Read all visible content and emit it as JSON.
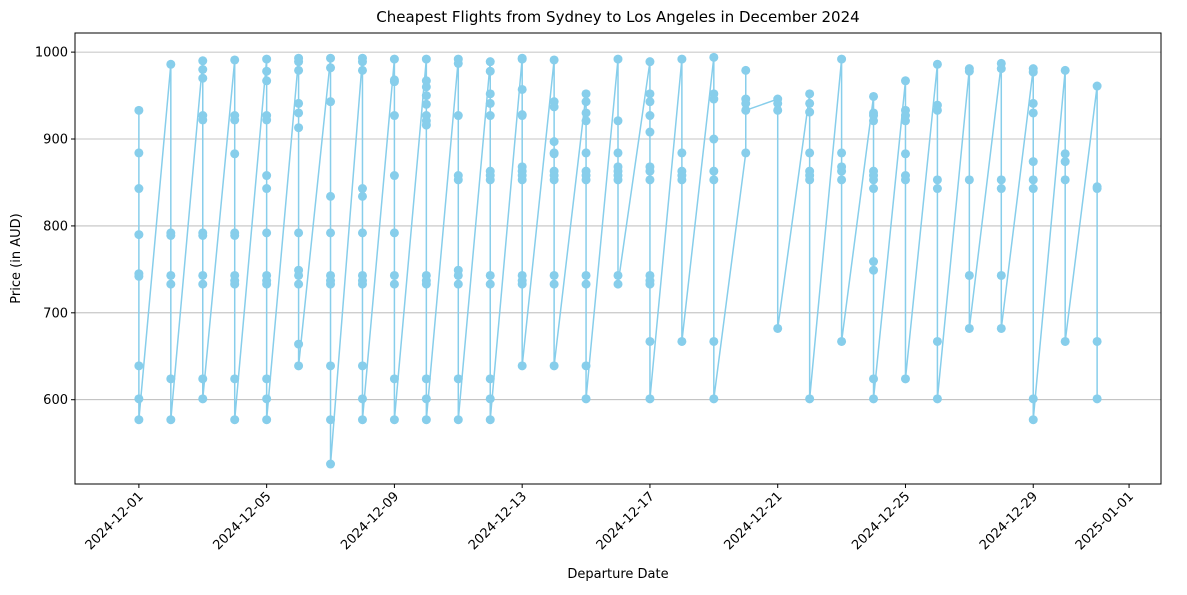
{
  "chart_data": {
    "type": "line",
    "title": "Cheapest Flights from Sydney to Los Angeles in December 2024",
    "xlabel": "Departure Date",
    "ylabel": "Price (in AUD)",
    "xlim": [
      "2024-11-29",
      "2025-01-02"
    ],
    "ylim": [
      503,
      1022
    ],
    "x_ticks": [
      "2024-12-01",
      "2024-12-05",
      "2024-12-09",
      "2024-12-13",
      "2024-12-17",
      "2024-12-21",
      "2024-12-25",
      "2024-12-29",
      "2025-01-01"
    ],
    "y_ticks": [
      600,
      700,
      800,
      900,
      1000
    ],
    "grid": "y-major",
    "color": "#87ceeb",
    "marker": "circle",
    "series": [
      {
        "points": [
          [
            "2024-12-01",
            933
          ],
          [
            "2024-12-01",
            884
          ],
          [
            "2024-12-01",
            843
          ],
          [
            "2024-12-01",
            790
          ],
          [
            "2024-12-01",
            745
          ],
          [
            "2024-12-01",
            742
          ],
          [
            "2024-12-01",
            639
          ],
          [
            "2024-12-01",
            601
          ],
          [
            "2024-12-01",
            577
          ],
          [
            "2024-12-02",
            986
          ],
          [
            "2024-12-02",
            792
          ],
          [
            "2024-12-02",
            789
          ],
          [
            "2024-12-02",
            743
          ],
          [
            "2024-12-02",
            733
          ],
          [
            "2024-12-02",
            624
          ],
          [
            "2024-12-02",
            577
          ],
          [
            "2024-12-03",
            990
          ],
          [
            "2024-12-03",
            980
          ],
          [
            "2024-12-03",
            970
          ],
          [
            "2024-12-03",
            927
          ],
          [
            "2024-12-03",
            922
          ],
          [
            "2024-12-03",
            792
          ],
          [
            "2024-12-03",
            789
          ],
          [
            "2024-12-03",
            743
          ],
          [
            "2024-12-03",
            733
          ],
          [
            "2024-12-03",
            624
          ],
          [
            "2024-12-03",
            601
          ],
          [
            "2024-12-04",
            991
          ],
          [
            "2024-12-04",
            927
          ],
          [
            "2024-12-04",
            922
          ],
          [
            "2024-12-04",
            883
          ],
          [
            "2024-12-04",
            792
          ],
          [
            "2024-12-04",
            789
          ],
          [
            "2024-12-04",
            743
          ],
          [
            "2024-12-04",
            737
          ],
          [
            "2024-12-04",
            733
          ],
          [
            "2024-12-04",
            624
          ],
          [
            "2024-12-04",
            577
          ],
          [
            "2024-12-05",
            992
          ],
          [
            "2024-12-05",
            978
          ],
          [
            "2024-12-05",
            967
          ],
          [
            "2024-12-05",
            927
          ],
          [
            "2024-12-05",
            922
          ],
          [
            "2024-12-05",
            858
          ],
          [
            "2024-12-05",
            843
          ],
          [
            "2024-12-05",
            792
          ],
          [
            "2024-12-05",
            743
          ],
          [
            "2024-12-05",
            737
          ],
          [
            "2024-12-05",
            733
          ],
          [
            "2024-12-05",
            624
          ],
          [
            "2024-12-05",
            601
          ],
          [
            "2024-12-05",
            577
          ],
          [
            "2024-12-06",
            993
          ],
          [
            "2024-12-06",
            989
          ],
          [
            "2024-12-06",
            979
          ],
          [
            "2024-12-06",
            941
          ],
          [
            "2024-12-06",
            930
          ],
          [
            "2024-12-06",
            913
          ],
          [
            "2024-12-06",
            792
          ],
          [
            "2024-12-06",
            749
          ],
          [
            "2024-12-06",
            743
          ],
          [
            "2024-12-06",
            733
          ],
          [
            "2024-12-06",
            664
          ],
          [
            "2024-12-06",
            639
          ],
          [
            "2024-12-07",
            993
          ],
          [
            "2024-12-07",
            982
          ],
          [
            "2024-12-07",
            943
          ],
          [
            "2024-12-07",
            834
          ],
          [
            "2024-12-07",
            792
          ],
          [
            "2024-12-07",
            743
          ],
          [
            "2024-12-07",
            737
          ],
          [
            "2024-12-07",
            733
          ],
          [
            "2024-12-07",
            639
          ],
          [
            "2024-12-07",
            577
          ],
          [
            "2024-12-07",
            526
          ],
          [
            "2024-12-08",
            993
          ],
          [
            "2024-12-08",
            989
          ],
          [
            "2024-12-08",
            979
          ],
          [
            "2024-12-08",
            843
          ],
          [
            "2024-12-08",
            834
          ],
          [
            "2024-12-08",
            792
          ],
          [
            "2024-12-08",
            743
          ],
          [
            "2024-12-08",
            737
          ],
          [
            "2024-12-08",
            733
          ],
          [
            "2024-12-08",
            639
          ],
          [
            "2024-12-08",
            601
          ],
          [
            "2024-12-08",
            577
          ],
          [
            "2024-12-09",
            992
          ],
          [
            "2024-12-09",
            968
          ],
          [
            "2024-12-09",
            966
          ],
          [
            "2024-12-09",
            927
          ],
          [
            "2024-12-09",
            858
          ],
          [
            "2024-12-09",
            792
          ],
          [
            "2024-12-09",
            743
          ],
          [
            "2024-12-09",
            733
          ],
          [
            "2024-12-09",
            624
          ],
          [
            "2024-12-09",
            577
          ],
          [
            "2024-12-10",
            992
          ],
          [
            "2024-12-10",
            967
          ],
          [
            "2024-12-10",
            960
          ],
          [
            "2024-12-10",
            950
          ],
          [
            "2024-12-10",
            940
          ],
          [
            "2024-12-10",
            927
          ],
          [
            "2024-12-10",
            921
          ],
          [
            "2024-12-10",
            916
          ],
          [
            "2024-12-10",
            743
          ],
          [
            "2024-12-10",
            737
          ],
          [
            "2024-12-10",
            733
          ],
          [
            "2024-12-10",
            624
          ],
          [
            "2024-12-10",
            601
          ],
          [
            "2024-12-10",
            577
          ],
          [
            "2024-12-11",
            992
          ],
          [
            "2024-12-11",
            987
          ],
          [
            "2024-12-11",
            927
          ],
          [
            "2024-12-11",
            858
          ],
          [
            "2024-12-11",
            853
          ],
          [
            "2024-12-11",
            749
          ],
          [
            "2024-12-11",
            743
          ],
          [
            "2024-12-11",
            733
          ],
          [
            "2024-12-11",
            624
          ],
          [
            "2024-12-11",
            577
          ],
          [
            "2024-12-12",
            989
          ],
          [
            "2024-12-12",
            978
          ],
          [
            "2024-12-12",
            952
          ],
          [
            "2024-12-12",
            941
          ],
          [
            "2024-12-12",
            927
          ],
          [
            "2024-12-12",
            863
          ],
          [
            "2024-12-12",
            858
          ],
          [
            "2024-12-12",
            853
          ],
          [
            "2024-12-12",
            743
          ],
          [
            "2024-12-12",
            733
          ],
          [
            "2024-12-12",
            624
          ],
          [
            "2024-12-12",
            601
          ],
          [
            "2024-12-12",
            577
          ],
          [
            "2024-12-13",
            993
          ],
          [
            "2024-12-13",
            992
          ],
          [
            "2024-12-13",
            957
          ],
          [
            "2024-12-13",
            928
          ],
          [
            "2024-12-13",
            927
          ],
          [
            "2024-12-13",
            868
          ],
          [
            "2024-12-13",
            863
          ],
          [
            "2024-12-13",
            858
          ],
          [
            "2024-12-13",
            853
          ],
          [
            "2024-12-13",
            743
          ],
          [
            "2024-12-13",
            737
          ],
          [
            "2024-12-13",
            733
          ],
          [
            "2024-12-13",
            639
          ],
          [
            "2024-12-14",
            991
          ],
          [
            "2024-12-14",
            943
          ],
          [
            "2024-12-14",
            937
          ],
          [
            "2024-12-14",
            897
          ],
          [
            "2024-12-14",
            884
          ],
          [
            "2024-12-14",
            883
          ],
          [
            "2024-12-14",
            863
          ],
          [
            "2024-12-14",
            858
          ],
          [
            "2024-12-14",
            853
          ],
          [
            "2024-12-14",
            743
          ],
          [
            "2024-12-14",
            733
          ],
          [
            "2024-12-14",
            639
          ],
          [
            "2024-12-15",
            952
          ],
          [
            "2024-12-15",
            943
          ],
          [
            "2024-12-15",
            930
          ],
          [
            "2024-12-15",
            921
          ],
          [
            "2024-12-15",
            884
          ],
          [
            "2024-12-15",
            863
          ],
          [
            "2024-12-15",
            858
          ],
          [
            "2024-12-15",
            853
          ],
          [
            "2024-12-15",
            743
          ],
          [
            "2024-12-15",
            733
          ],
          [
            "2024-12-15",
            639
          ],
          [
            "2024-12-15",
            601
          ],
          [
            "2024-12-16",
            992
          ],
          [
            "2024-12-16",
            921
          ],
          [
            "2024-12-16",
            884
          ],
          [
            "2024-12-16",
            868
          ],
          [
            "2024-12-16",
            863
          ],
          [
            "2024-12-16",
            858
          ],
          [
            "2024-12-16",
            853
          ],
          [
            "2024-12-16",
            743
          ],
          [
            "2024-12-16",
            733
          ],
          [
            "2024-12-17",
            989
          ],
          [
            "2024-12-17",
            952
          ],
          [
            "2024-12-17",
            943
          ],
          [
            "2024-12-17",
            927
          ],
          [
            "2024-12-17",
            908
          ],
          [
            "2024-12-17",
            868
          ],
          [
            "2024-12-17",
            863
          ],
          [
            "2024-12-17",
            853
          ],
          [
            "2024-12-17",
            743
          ],
          [
            "2024-12-17",
            737
          ],
          [
            "2024-12-17",
            733
          ],
          [
            "2024-12-17",
            667
          ],
          [
            "2024-12-17",
            601
          ],
          [
            "2024-12-18",
            992
          ],
          [
            "2024-12-18",
            884
          ],
          [
            "2024-12-18",
            863
          ],
          [
            "2024-12-18",
            858
          ],
          [
            "2024-12-18",
            853
          ],
          [
            "2024-12-18",
            667
          ],
          [
            "2024-12-19",
            994
          ],
          [
            "2024-12-19",
            952
          ],
          [
            "2024-12-19",
            946
          ],
          [
            "2024-12-19",
            900
          ],
          [
            "2024-12-19",
            863
          ],
          [
            "2024-12-19",
            853
          ],
          [
            "2024-12-19",
            667
          ],
          [
            "2024-12-19",
            601
          ],
          [
            "2024-12-20",
            884
          ],
          [
            "2024-12-20",
            979
          ],
          [
            "2024-12-20",
            946
          ],
          [
            "2024-12-20",
            941
          ],
          [
            "2024-12-20",
            933
          ],
          [
            "2024-12-21",
            946
          ],
          [
            "2024-12-21",
            941
          ],
          [
            "2024-12-21",
            933
          ],
          [
            "2024-12-21",
            682
          ],
          [
            "2024-12-22",
            952
          ],
          [
            "2024-12-22",
            941
          ],
          [
            "2024-12-22",
            931
          ],
          [
            "2024-12-22",
            884
          ],
          [
            "2024-12-22",
            863
          ],
          [
            "2024-12-22",
            858
          ],
          [
            "2024-12-22",
            853
          ],
          [
            "2024-12-22",
            601
          ],
          [
            "2024-12-23",
            992
          ],
          [
            "2024-12-23",
            884
          ],
          [
            "2024-12-23",
            868
          ],
          [
            "2024-12-23",
            863
          ],
          [
            "2024-12-23",
            853
          ],
          [
            "2024-12-23",
            667
          ],
          [
            "2024-12-24",
            949
          ],
          [
            "2024-12-24",
            930
          ],
          [
            "2024-12-24",
            927
          ],
          [
            "2024-12-24",
            921
          ],
          [
            "2024-12-24",
            863
          ],
          [
            "2024-12-24",
            858
          ],
          [
            "2024-12-24",
            853
          ],
          [
            "2024-12-24",
            843
          ],
          [
            "2024-12-24",
            759
          ],
          [
            "2024-12-24",
            749
          ],
          [
            "2024-12-24",
            624
          ],
          [
            "2024-12-24",
            601
          ],
          [
            "2024-12-25",
            967
          ],
          [
            "2024-12-25",
            933
          ],
          [
            "2024-12-25",
            927
          ],
          [
            "2024-12-25",
            921
          ],
          [
            "2024-12-25",
            883
          ],
          [
            "2024-12-25",
            858
          ],
          [
            "2024-12-25",
            853
          ],
          [
            "2024-12-25",
            624
          ],
          [
            "2024-12-26",
            986
          ],
          [
            "2024-12-26",
            939
          ],
          [
            "2024-12-26",
            933
          ],
          [
            "2024-12-26",
            853
          ],
          [
            "2024-12-26",
            843
          ],
          [
            "2024-12-26",
            667
          ],
          [
            "2024-12-26",
            601
          ],
          [
            "2024-12-27",
            981
          ],
          [
            "2024-12-27",
            978
          ],
          [
            "2024-12-27",
            853
          ],
          [
            "2024-12-27",
            743
          ],
          [
            "2024-12-27",
            682
          ],
          [
            "2024-12-28",
            987
          ],
          [
            "2024-12-28",
            981
          ],
          [
            "2024-12-28",
            853
          ],
          [
            "2024-12-28",
            843
          ],
          [
            "2024-12-28",
            743
          ],
          [
            "2024-12-28",
            682
          ],
          [
            "2024-12-29",
            981
          ],
          [
            "2024-12-29",
            977
          ],
          [
            "2024-12-29",
            941
          ],
          [
            "2024-12-29",
            930
          ],
          [
            "2024-12-29",
            874
          ],
          [
            "2024-12-29",
            853
          ],
          [
            "2024-12-29",
            843
          ],
          [
            "2024-12-29",
            601
          ],
          [
            "2024-12-29",
            577
          ],
          [
            "2024-12-30",
            979
          ],
          [
            "2024-12-30",
            883
          ],
          [
            "2024-12-30",
            874
          ],
          [
            "2024-12-30",
            853
          ],
          [
            "2024-12-30",
            667
          ],
          [
            "2024-12-31",
            961
          ],
          [
            "2024-12-31",
            845
          ],
          [
            "2024-12-31",
            843
          ],
          [
            "2024-12-31",
            667
          ],
          [
            "2024-12-31",
            601
          ]
        ]
      }
    ]
  }
}
